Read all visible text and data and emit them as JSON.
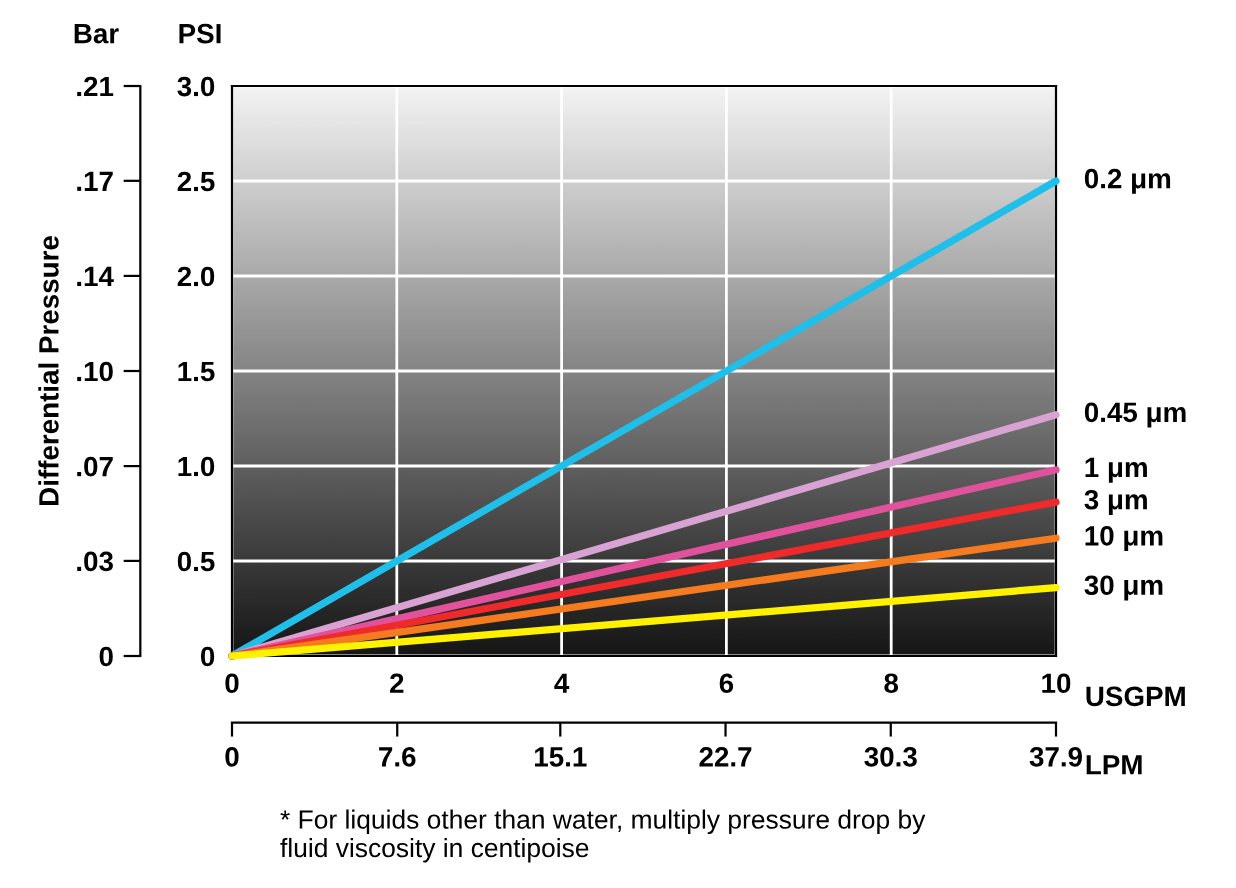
{
  "chart_data": {
    "type": "line",
    "y2label": "Differential Pressure",
    "xlabel": "USGPM",
    "x2label": "LPM",
    "annotations": [
      "Bar",
      "PSI",
      "* For liquids other than water, multiply pressure drop by\nfluid viscosity in centipoise"
    ],
    "x": [
      0,
      10
    ],
    "series": [
      {
        "name": "0.2 μm",
        "color": "#1fbfea",
        "values": [
          0,
          2.5
        ]
      },
      {
        "name": "0.45 μm",
        "color": "#d8a2d2",
        "values": [
          0,
          1.27
        ]
      },
      {
        "name": "1 μm",
        "color": "#e0529c",
        "values": [
          0,
          0.98
        ]
      },
      {
        "name": "3 μm",
        "color": "#ee2a2a",
        "values": [
          0,
          0.81
        ]
      },
      {
        "name": "10 μm",
        "color": "#f47b20",
        "values": [
          0,
          0.62
        ]
      },
      {
        "name": "30 μm",
        "color": "#fff200",
        "values": [
          0,
          0.36
        ]
      }
    ],
    "xlim": [
      0,
      10
    ],
    "xticks": [
      0,
      2,
      4,
      6,
      8,
      10
    ],
    "ylim": [
      0,
      3.0
    ],
    "yticks": [
      0,
      0.5,
      {
        "value": 1,
        "label": "1.0"
      },
      1.5,
      {
        "value": 2,
        "label": "2.0"
      },
      2.5,
      {
        "value": 3,
        "label": "3.0"
      }
    ],
    "y2lim": [
      0,
      0.2068
    ],
    "y2ticks": [
      0,
      {
        "value": 0.0345,
        "label": ".03"
      },
      {
        "value": 0.0689,
        "label": ".07"
      },
      {
        "value": 0.1034,
        "label": ".10"
      },
      {
        "value": 0.1379,
        "label": ".14"
      },
      {
        "value": 0.1724,
        "label": ".17"
      },
      {
        "value": 0.2068,
        "label": ".21"
      }
    ],
    "x2lim": [
      0,
      37.9
    ],
    "x2ticks": [
      0,
      7.6,
      15.1,
      22.7,
      30.3,
      37.9
    ],
    "grid": true,
    "legend": false,
    "line_style": "solid",
    "marker": "none"
  }
}
